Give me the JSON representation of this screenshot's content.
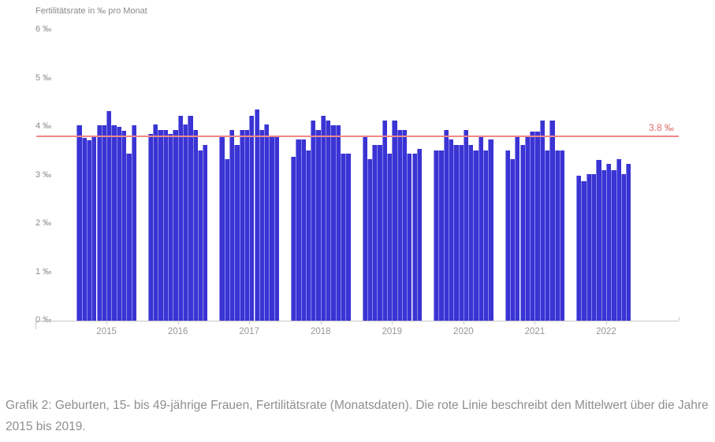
{
  "header": {
    "title": "Fertilitätsrate in ‰ pro Monat"
  },
  "chart_data": {
    "type": "bar",
    "title": "Fertilitätsrate in ‰ pro Monat",
    "unit": "‰",
    "ylim": [
      0,
      6
    ],
    "yticks": [
      0,
      1,
      2,
      3,
      4,
      5,
      6
    ],
    "ytick_suffix": " ‰",
    "grid": false,
    "bar_color": "#3a34d4",
    "categories": [
      "2015",
      "2016",
      "2017",
      "2018",
      "2019",
      "2020",
      "2021",
      "2022"
    ],
    "series": [
      {
        "year": "2015",
        "values": [
          4.03,
          3.77,
          3.73,
          3.81,
          4.04,
          4.04,
          4.33,
          4.04,
          4.0,
          3.92,
          3.44,
          4.03
        ]
      },
      {
        "year": "2016",
        "values": [
          3.85,
          4.05,
          3.93,
          3.93,
          3.86,
          3.93,
          4.23,
          4.05,
          4.23,
          3.93,
          3.52,
          3.62
        ]
      },
      {
        "year": "2017",
        "values": [
          3.81,
          3.33,
          3.93,
          3.62,
          3.93,
          3.93,
          4.23,
          4.35,
          3.93,
          4.05,
          3.81,
          3.81
        ]
      },
      {
        "year": "2018",
        "values": [
          3.38,
          3.74,
          3.74,
          3.51,
          4.13,
          3.93,
          4.23,
          4.13,
          4.04,
          4.04,
          3.44,
          3.44
        ]
      },
      {
        "year": "2019",
        "values": [
          3.81,
          3.33,
          3.62,
          3.62,
          4.13,
          3.44,
          4.13,
          3.93,
          3.93,
          3.44,
          3.44,
          3.55
        ]
      },
      {
        "year": "2020",
        "values": [
          3.52,
          3.52,
          3.93,
          3.74,
          3.62,
          3.62,
          3.93,
          3.62,
          3.52,
          3.81,
          3.52,
          3.74
        ]
      },
      {
        "year": "2021",
        "values": [
          3.52,
          3.33,
          3.81,
          3.62,
          3.81,
          3.91,
          3.91,
          4.13,
          3.52,
          4.13,
          3.52,
          3.52
        ]
      },
      {
        "year": "2022",
        "values": [
          3.0,
          2.87,
          3.03,
          3.03,
          3.31,
          3.11,
          3.23,
          3.11,
          3.33,
          3.03,
          3.23
        ]
      }
    ],
    "reference_line": {
      "value": 3.8,
      "label": "3.8 ‰",
      "color": "#f18888"
    },
    "legend_position": "none"
  },
  "caption": {
    "text": "Grafik 2: Geburten, 15- bis 49-jährige Frauen, Fertilitätsrate (Monatsdaten). Die rote Linie beschreibt den Mittelwert über die Jahre 2015 bis 2019."
  }
}
